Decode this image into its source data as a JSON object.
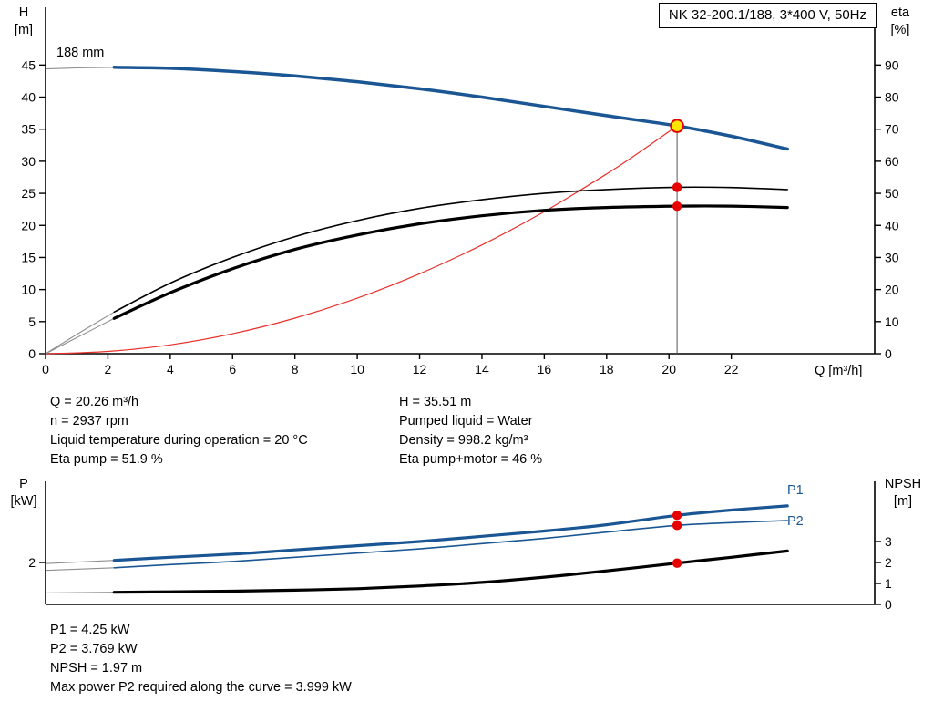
{
  "colors": {
    "blue": "#1a5693",
    "black": "#000000",
    "red": "#e8312a",
    "marker_red": "#e60000",
    "marker_yellow": "#ffe400",
    "lead_gray": "#8f8f8f",
    "duty_line": "#555555"
  },
  "chart_data": [
    {
      "type": "line",
      "title": "NK 32-200.1/188, 3*400 V, 50Hz",
      "annotation": "188 mm",
      "x_axis": {
        "label": "Q [m³/h]",
        "min": 0,
        "max": 26.6,
        "ticks": [
          0,
          2,
          4,
          6,
          8,
          10,
          12,
          14,
          16,
          18,
          20,
          22
        ]
      },
      "left_axis": {
        "label": "H",
        "unit": "[m]",
        "min": 0,
        "max": 54,
        "ticks": [
          0,
          5,
          10,
          15,
          20,
          25,
          30,
          35,
          40,
          45
        ]
      },
      "right_axis": {
        "label": "eta",
        "unit": "[%]",
        "min": 0,
        "max": 108,
        "ticks": [
          0,
          10,
          20,
          30,
          40,
          50,
          60,
          70,
          80,
          90
        ]
      },
      "duty_line": {
        "q": 20.26,
        "v": 35.51,
        "axis": "left"
      },
      "series": [
        {
          "name": "system-curve",
          "axis": "left",
          "color": "red",
          "width": 1.2,
          "points": [
            [
              0,
              0
            ],
            [
              2,
              0.35
            ],
            [
              4,
              1.38
            ],
            [
              6,
              3.11
            ],
            [
              8,
              5.54
            ],
            [
              10,
              8.65
            ],
            [
              12,
              12.46
            ],
            [
              14,
              16.96
            ],
            [
              16,
              22.15
            ],
            [
              18,
              28.03
            ],
            [
              19,
              31.24
            ],
            [
              20.26,
              35.51
            ]
          ]
        },
        {
          "name": "eta-pump",
          "axis": "right",
          "color": "black",
          "width": 1.6,
          "lead_until": 2.2,
          "points": [
            [
              0,
              0
            ],
            [
              1,
              6
            ],
            [
              2.2,
              13
            ],
            [
              4,
              22
            ],
            [
              6,
              30
            ],
            [
              8,
              36.5
            ],
            [
              10,
              41.5
            ],
            [
              12,
              45.3
            ],
            [
              14,
              48
            ],
            [
              16,
              50
            ],
            [
              18,
              51.2
            ],
            [
              20.26,
              51.9
            ],
            [
              22,
              51.8
            ],
            [
              23.8,
              51.2
            ]
          ]
        },
        {
          "name": "eta-pump-motor",
          "axis": "right",
          "color": "black",
          "width": 3.2,
          "lead_until": 2.2,
          "points": [
            [
              0,
              0
            ],
            [
              1,
              5
            ],
            [
              2.2,
              11
            ],
            [
              4,
              19
            ],
            [
              6,
              26.5
            ],
            [
              8,
              32.5
            ],
            [
              10,
              37
            ],
            [
              12,
              40.5
            ],
            [
              14,
              43
            ],
            [
              16,
              44.7
            ],
            [
              18,
              45.6
            ],
            [
              20.26,
              46
            ],
            [
              22,
              46
            ],
            [
              23.8,
              45.6
            ]
          ]
        },
        {
          "name": "H-curve",
          "axis": "left",
          "color": "blue",
          "width": 3.5,
          "lead_until": 2.2,
          "points": [
            [
              0,
              44.4
            ],
            [
              1,
              44.55
            ],
            [
              2.2,
              44.65
            ],
            [
              4,
              44.5
            ],
            [
              6,
              44.0
            ],
            [
              8,
              43.3
            ],
            [
              10,
              42.4
            ],
            [
              12,
              41.3
            ],
            [
              14,
              40.0
            ],
            [
              16,
              38.55
            ],
            [
              18,
              37.1
            ],
            [
              20.26,
              35.51
            ],
            [
              22,
              33.9
            ],
            [
              23.8,
              31.9
            ]
          ]
        }
      ],
      "markers": [
        {
          "q": 20.26,
          "v": 35.51,
          "axis": "left",
          "style": "duty"
        },
        {
          "q": 20.26,
          "v": 51.9,
          "axis": "right",
          "style": "point"
        },
        {
          "q": 20.26,
          "v": 46,
          "axis": "right",
          "style": "point"
        }
      ]
    },
    {
      "type": "line",
      "x_axis": {
        "label": "",
        "min": 0,
        "max": 26.6,
        "ticks": []
      },
      "left_axis": {
        "label": "P",
        "unit": "[kW]",
        "min": 0,
        "max": 5.87,
        "ticks": [
          2
        ]
      },
      "right_axis": {
        "label": "NPSH",
        "unit": "[m]",
        "min": 0,
        "max": 5.87,
        "ticks": [
          0,
          1,
          2,
          3
        ]
      },
      "series": [
        {
          "name": "P1",
          "axis": "left",
          "color": "blue",
          "width": 3.2,
          "lead_until": 2.2,
          "points": [
            [
              0,
              1.95
            ],
            [
              2.2,
              2.1
            ],
            [
              4,
              2.25
            ],
            [
              6,
              2.4
            ],
            [
              8,
              2.6
            ],
            [
              10,
              2.8
            ],
            [
              12,
              3.0
            ],
            [
              14,
              3.25
            ],
            [
              16,
              3.5
            ],
            [
              18,
              3.8
            ],
            [
              20.26,
              4.25
            ],
            [
              22,
              4.5
            ],
            [
              23.8,
              4.7
            ]
          ]
        },
        {
          "name": "P2",
          "axis": "left",
          "color": "blue",
          "width": 1.6,
          "lead_until": 2.2,
          "points": [
            [
              0,
              1.62
            ],
            [
              2.2,
              1.75
            ],
            [
              4,
              1.9
            ],
            [
              6,
              2.05
            ],
            [
              8,
              2.25
            ],
            [
              10,
              2.45
            ],
            [
              12,
              2.65
            ],
            [
              14,
              2.9
            ],
            [
              16,
              3.15
            ],
            [
              18,
              3.45
            ],
            [
              20.26,
              3.769
            ],
            [
              22,
              3.9
            ],
            [
              23.8,
              4.0
            ]
          ]
        },
        {
          "name": "NPSH",
          "axis": "right",
          "color": "black",
          "width": 3.2,
          "lead_until": 2.2,
          "points": [
            [
              0,
              0.55
            ],
            [
              2.2,
              0.58
            ],
            [
              4,
              0.6
            ],
            [
              6,
              0.63
            ],
            [
              8,
              0.68
            ],
            [
              10,
              0.75
            ],
            [
              12,
              0.88
            ],
            [
              14,
              1.05
            ],
            [
              16,
              1.3
            ],
            [
              18,
              1.6
            ],
            [
              20.26,
              1.97
            ],
            [
              22,
              2.25
            ],
            [
              23.8,
              2.55
            ]
          ]
        }
      ],
      "markers": [
        {
          "q": 20.26,
          "v": 4.25,
          "axis": "left",
          "style": "point"
        },
        {
          "q": 20.26,
          "v": 3.769,
          "axis": "left",
          "style": "point"
        },
        {
          "q": 20.26,
          "v": 1.97,
          "axis": "right",
          "style": "point"
        }
      ]
    }
  ],
  "operating_point": {
    "left_lines": [
      "Q = 20.26 m³/h",
      "n = 2937 rpm",
      "Liquid temperature during operation = 20 °C",
      "Eta pump = 51.9 %"
    ],
    "right_lines": [
      "H = 35.51 m",
      "Pumped liquid = Water",
      "Density = 998.2 kg/m³",
      "Eta pump+motor = 46 %"
    ]
  },
  "result_lines": [
    "P1 = 4.25 kW",
    "P2 = 3.769 kW",
    "NPSH = 1.97 m",
    "Max power P2 required along the curve = 3.999 kW"
  ]
}
